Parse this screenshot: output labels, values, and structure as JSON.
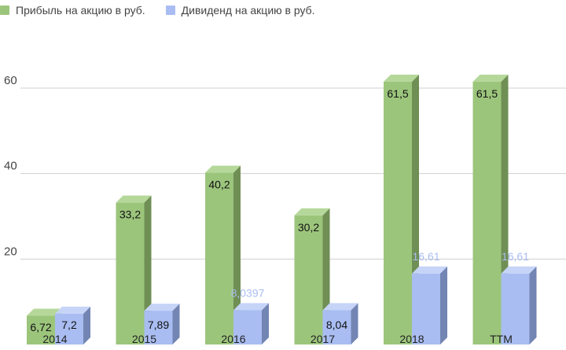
{
  "chart_data": {
    "type": "bar",
    "style": "3d-clustered-column",
    "legend_position": "top-left",
    "categories": [
      "2014",
      "2015",
      "2016",
      "2017",
      "2018",
      "TTM"
    ],
    "series": [
      {
        "name": "Прибыль на акцию в руб.",
        "values": [
          6.72,
          33.2,
          40.2,
          30.2,
          61.5,
          61.5
        ],
        "labels": [
          "6,72",
          "33,2",
          "40,2",
          "30,2",
          "61,5",
          "61,5"
        ],
        "color": "#9cc57c",
        "side_color": "#6f8f55",
        "top_color": "#b5d89a",
        "label_color": "#111111"
      },
      {
        "name": "Дивиденд на акцию в руб.",
        "values": [
          7.2,
          7.89,
          8.0397,
          8.04,
          16.61,
          16.61
        ],
        "labels": [
          "7,2",
          "7,89",
          "8,0397",
          "8,04",
          "16,61",
          "16,61"
        ],
        "color": "#a9bdf2",
        "side_color": "#7385b3",
        "top_color": "#c6d4f8",
        "label_color": "#111111",
        "label_colors": [
          "#111111",
          "#111111",
          "#a9bdf2",
          "#111111",
          "#a9bdf2",
          "#a9bdf2"
        ]
      }
    ],
    "y_ticks": [
      20,
      40,
      60
    ],
    "ylim": [
      0,
      66
    ],
    "grid": true,
    "grid_color": "#cfcfcf",
    "axis_text_color": "#444444"
  }
}
